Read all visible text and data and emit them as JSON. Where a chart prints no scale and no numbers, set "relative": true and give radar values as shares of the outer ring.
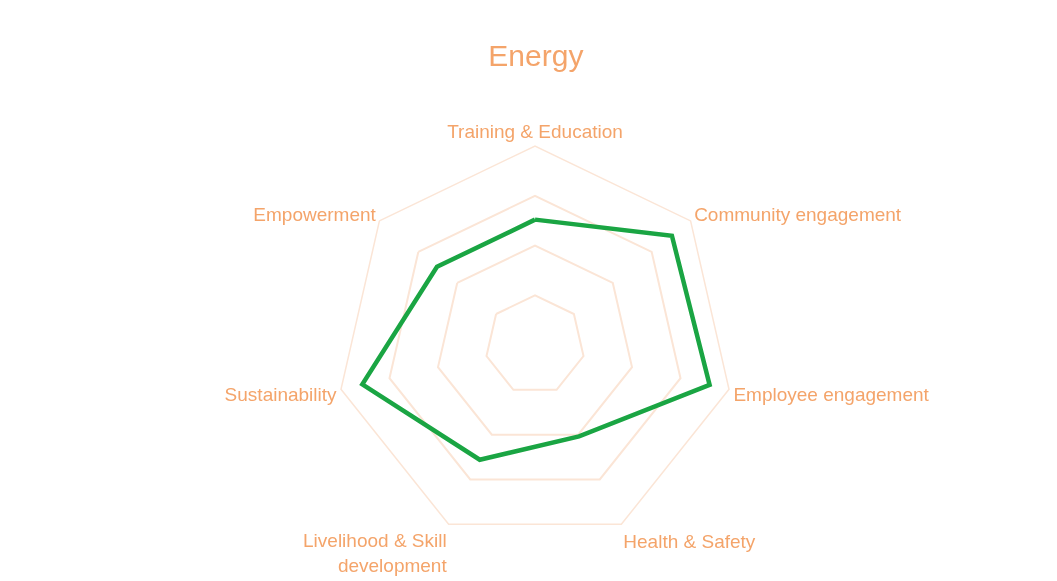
{
  "chart_data": {
    "type": "radar",
    "title": "Energy",
    "relative": true,
    "categories": [
      "Training & Education",
      "Community engagement",
      "Employee engagement",
      "Health & Safety",
      "Livelihood & Skill development",
      "Sustainability",
      "Empowerment"
    ],
    "series": [
      {
        "color": "#1aa543",
        "values": [
          0.63,
          0.88,
          0.9,
          0.51,
          0.64,
          0.89,
          0.63
        ]
      }
    ]
  }
}
